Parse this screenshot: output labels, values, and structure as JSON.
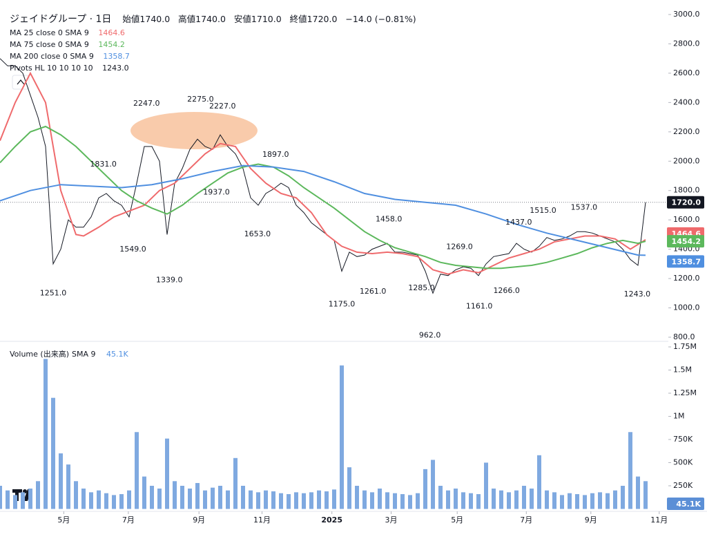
{
  "chart_data": [
    {
      "type": "line",
      "title": "ジェイドグループ · 1日",
      "ohlc": [
        {
          "label": "始値",
          "value": 1740,
          "value_label": "1740.0"
        },
        {
          "label": "高値",
          "value": 1740,
          "value_label": "1740.0"
        },
        {
          "label": "安値",
          "value": 1710,
          "value_label": "1710.0"
        },
        {
          "label": "終値",
          "value": 1720,
          "value_label": "1720.0"
        }
      ],
      "change": {
        "value": -14,
        "label": "−14.0",
        "percent": -0.81,
        "percent_label": "(−0.81%)"
      },
      "pivots_name": "Pivots HL 10 10 10 10",
      "xlim": [
        0,
        88
      ],
      "xticks": [
        {
          "value": 8.4,
          "label": "5月"
        },
        {
          "value": 16.9,
          "label": "7月"
        },
        {
          "value": 26.2,
          "label": "9月"
        },
        {
          "value": 34.5,
          "label": "11月"
        },
        {
          "value": 43.7,
          "label": "2025"
        },
        {
          "value": 51.5,
          "label": "3月"
        },
        {
          "value": 60.2,
          "label": "5月"
        },
        {
          "value": 69.3,
          "label": "7月"
        },
        {
          "value": 77.8,
          "label": "9月"
        },
        {
          "value": 86.8,
          "label": "11月"
        }
      ],
      "ylim": [
        800,
        3000
      ],
      "yticks": [
        {
          "value": 800,
          "label": "800.0"
        },
        {
          "value": 1000,
          "label": "1000.0"
        },
        {
          "value": 1200,
          "label": "1200.0"
        },
        {
          "value": 1400,
          "label": "1400.0"
        },
        {
          "value": 1600,
          "label": "1600.0"
        },
        {
          "value": 1800,
          "label": "1800.0"
        },
        {
          "value": 2000,
          "label": "2000.0"
        },
        {
          "value": 2200,
          "label": "2200.0"
        },
        {
          "value": 2400,
          "label": "2400.0"
        },
        {
          "value": 2600,
          "label": "2600.0"
        },
        {
          "value": 2800,
          "label": "2800.0"
        },
        {
          "value": 3000,
          "label": "3000.0"
        }
      ],
      "series": [
        {
          "color": "#131722",
          "x": [
            0,
            1,
            2,
            3,
            4,
            5,
            6,
            7,
            8,
            9,
            10,
            11,
            12,
            13,
            14,
            15,
            16,
            17,
            18,
            19,
            20,
            21,
            22,
            23,
            24,
            25,
            26,
            27,
            28,
            29,
            30,
            31,
            32,
            33,
            34,
            35,
            36,
            37,
            38,
            39,
            40,
            41,
            42,
            43,
            44,
            45,
            46,
            47,
            48,
            49,
            50,
            51,
            52,
            53,
            54,
            55,
            56,
            57,
            58,
            59,
            60,
            61,
            62,
            63,
            64,
            65,
            66,
            67,
            68,
            69,
            70,
            71,
            72,
            73,
            74,
            75,
            76,
            77,
            78,
            79,
            80,
            81,
            82,
            83,
            84,
            85
          ],
          "values": [
            2700,
            2650,
            2650,
            2600,
            2450,
            2300,
            2100,
            1300,
            1400,
            1600,
            1550,
            1550,
            1620,
            1750,
            1780,
            1730,
            1700,
            1620,
            1850,
            2100,
            2100,
            2000,
            1500,
            1850,
            1950,
            2080,
            2150,
            2100,
            2080,
            2180,
            2100,
            2050,
            1950,
            1750,
            1700,
            1780,
            1810,
            1850,
            1820,
            1700,
            1650,
            1580,
            1540,
            1500,
            1460,
            1250,
            1380,
            1350,
            1360,
            1400,
            1420,
            1440,
            1380,
            1380,
            1370,
            1360,
            1250,
            1100,
            1230,
            1220,
            1260,
            1280,
            1270,
            1220,
            1300,
            1350,
            1360,
            1370,
            1440,
            1400,
            1380,
            1420,
            1480,
            1460,
            1470,
            1490,
            1520,
            1520,
            1510,
            1490,
            1470,
            1450,
            1400,
            1330,
            1290,
            1720
          ]
        },
        {
          "name": "MA 25 close 0 SMA 9",
          "color": "#ef6a6c",
          "x": [
            0,
            2,
            4,
            6,
            8,
            10,
            11,
            13,
            15,
            17,
            19,
            21,
            23,
            25,
            27,
            29,
            31,
            33,
            35,
            37,
            39,
            41,
            43,
            45,
            47,
            49,
            51,
            53,
            55,
            57,
            59,
            61,
            63,
            65,
            67,
            69,
            71,
            73,
            75,
            77,
            79,
            81,
            83,
            85
          ],
          "values": [
            2140,
            2400,
            2600,
            2400,
            1800,
            1500,
            1490,
            1550,
            1620,
            1660,
            1700,
            1800,
            1850,
            1950,
            2050,
            2120,
            2100,
            1950,
            1850,
            1780,
            1750,
            1650,
            1500,
            1420,
            1380,
            1370,
            1380,
            1370,
            1350,
            1260,
            1230,
            1260,
            1240,
            1290,
            1340,
            1370,
            1400,
            1450,
            1470,
            1490,
            1490,
            1470,
            1400,
            1464.6
          ]
        },
        {
          "name": "MA 75 close 0 SMA 9",
          "color": "#5cb85c",
          "x": [
            0,
            2,
            4,
            6,
            8,
            10,
            12,
            14,
            16,
            18,
            20,
            22,
            24,
            26,
            28,
            30,
            32,
            34,
            36,
            38,
            40,
            42,
            44,
            46,
            48,
            50,
            52,
            54,
            56,
            58,
            60,
            62,
            64,
            66,
            68,
            70,
            72,
            74,
            76,
            78,
            80,
            82,
            84,
            85
          ],
          "values": [
            1990,
            2100,
            2200,
            2237,
            2180,
            2100,
            2000,
            1900,
            1800,
            1730,
            1680,
            1640,
            1700,
            1780,
            1850,
            1920,
            1960,
            1980,
            1960,
            1900,
            1820,
            1750,
            1680,
            1600,
            1520,
            1460,
            1410,
            1380,
            1350,
            1310,
            1290,
            1280,
            1270,
            1270,
            1280,
            1290,
            1310,
            1340,
            1370,
            1410,
            1440,
            1460,
            1440,
            1454.2
          ]
        },
        {
          "name": "MA 200 close 0 SMA 9",
          "color": "#4f8fe0",
          "x": [
            0,
            4,
            8,
            12,
            16,
            20,
            24,
            28,
            32,
            36,
            40,
            44,
            48,
            52,
            56,
            60,
            64,
            68,
            72,
            76,
            80,
            84,
            85
          ],
          "values": [
            1730,
            1800,
            1840,
            1830,
            1820,
            1840,
            1880,
            1930,
            1970,
            1960,
            1930,
            1860,
            1780,
            1740,
            1720,
            1700,
            1640,
            1570,
            1510,
            1460,
            1410,
            1360,
            1358.7
          ]
        }
      ],
      "pivot_highs": [
        {
          "x": 13.6,
          "value": 1831,
          "label": "1831.0"
        },
        {
          "x": 19.3,
          "value": 2247,
          "label": "2247.0"
        },
        {
          "x": 26.4,
          "value": 2275,
          "label": "2275.0"
        },
        {
          "x": 29.3,
          "value": 2227,
          "label": "2227.0"
        },
        {
          "x": 36.3,
          "value": 1897,
          "label": "1897.0"
        },
        {
          "x": 51.2,
          "value": 1458,
          "label": "1458.0"
        },
        {
          "x": 60.5,
          "value": 1269,
          "label": "1269.0"
        },
        {
          "x": 68.3,
          "value": 1437,
          "label": "1437.0"
        },
        {
          "x": 71.5,
          "value": 1515,
          "label": "1515.0"
        },
        {
          "x": 76.9,
          "value": 1537,
          "label": "1537.0"
        }
      ],
      "pivot_lows": [
        {
          "x": 7,
          "value": 1251,
          "label": "1251.0"
        },
        {
          "x": 17.5,
          "value": 1549,
          "label": "1549.0"
        },
        {
          "x": 22.3,
          "value": 1339,
          "label": "1339.0"
        },
        {
          "x": 28.5,
          "value": 1937,
          "label": "1937.0"
        },
        {
          "x": 33.9,
          "value": 1653,
          "label": "1653.0"
        },
        {
          "x": 45,
          "value": 1175,
          "label": "1175.0"
        },
        {
          "x": 49.1,
          "value": 1261,
          "label": "1261.0"
        },
        {
          "x": 55.5,
          "value": 1285,
          "label": "1285.0"
        },
        {
          "x": 56.6,
          "value": 962,
          "label": "962.0"
        },
        {
          "x": 63.1,
          "value": 1161,
          "label": "1161.0"
        },
        {
          "x": 66.7,
          "value": 1266,
          "label": "1266.0"
        },
        {
          "x": 83.9,
          "value": 1243,
          "label": "1243.0"
        }
      ]
    },
    {
      "type": "bar",
      "title": "Volume (出来高)",
      "sma_label": "SMA 9",
      "sma_value": 45100,
      "sma_value_label": "45.1K",
      "color": "#7fa9e0",
      "xlim": [
        0,
        88
      ],
      "ylim": [
        0,
        1750000
      ],
      "yticks": [
        {
          "value": 250000,
          "label": "250K"
        },
        {
          "value": 500000,
          "label": "500K"
        },
        {
          "value": 750000,
          "label": "750K"
        },
        {
          "value": 1000000,
          "label": "1M"
        },
        {
          "value": 1250000,
          "label": "1.25M"
        },
        {
          "value": 1500000,
          "label": "1.5M"
        },
        {
          "value": 1750000,
          "label": "1.75M"
        }
      ],
      "x": [
        0,
        1,
        2,
        3,
        4,
        5,
        6,
        7,
        8,
        9,
        10,
        11,
        12,
        13,
        14,
        15,
        16,
        17,
        18,
        19,
        20,
        21,
        22,
        23,
        24,
        25,
        26,
        27,
        28,
        29,
        30,
        31,
        32,
        33,
        34,
        35,
        36,
        37,
        38,
        39,
        40,
        41,
        42,
        43,
        44,
        45,
        46,
        47,
        48,
        49,
        50,
        51,
        52,
        53,
        54,
        55,
        56,
        57,
        58,
        59,
        60,
        61,
        62,
        63,
        64,
        65,
        66,
        67,
        68,
        69,
        70,
        71,
        72,
        73,
        74,
        75,
        76,
        77,
        78,
        79,
        80,
        81,
        82,
        83,
        84,
        85
      ],
      "values": [
        250000,
        200000,
        150000,
        180000,
        220000,
        300000,
        1620000,
        1200000,
        600000,
        480000,
        300000,
        220000,
        180000,
        200000,
        170000,
        150000,
        160000,
        200000,
        830000,
        350000,
        250000,
        220000,
        760000,
        300000,
        250000,
        220000,
        280000,
        200000,
        230000,
        250000,
        200000,
        550000,
        250000,
        200000,
        180000,
        200000,
        190000,
        170000,
        160000,
        180000,
        170000,
        180000,
        200000,
        190000,
        210000,
        1550000,
        450000,
        250000,
        200000,
        180000,
        220000,
        180000,
        170000,
        160000,
        150000,
        170000,
        430000,
        530000,
        250000,
        200000,
        220000,
        180000,
        170000,
        160000,
        500000,
        220000,
        200000,
        180000,
        200000,
        250000,
        220000,
        580000,
        200000,
        180000,
        150000,
        170000,
        160000,
        150000,
        170000,
        180000,
        170000,
        200000,
        250000,
        830000,
        350000,
        300000
      ]
    }
  ]
}
